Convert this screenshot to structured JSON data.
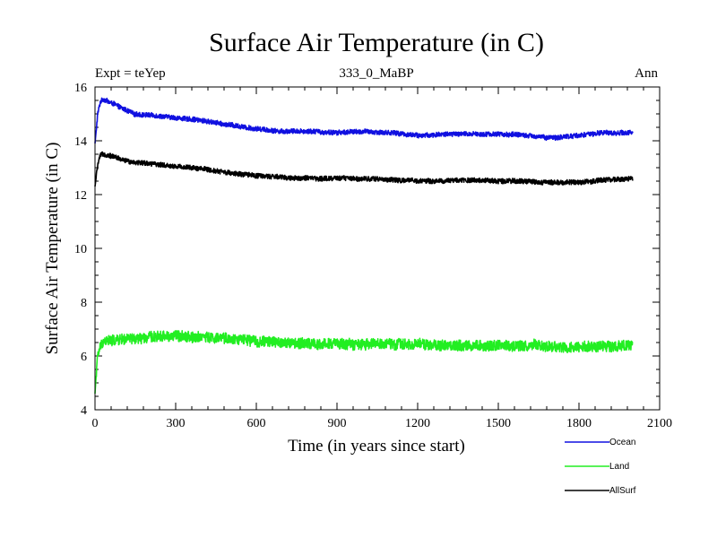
{
  "chart_data": {
    "type": "line",
    "title": "Surface Air Temperature (in C)",
    "subtitle": "333_0_MaBP",
    "expt_label": "Expt = teYep",
    "period_label": "Ann",
    "xlabel": "Time (in years since start)",
    "ylabel": "Surface Air Temperature (in C)",
    "xlim": [
      0,
      2100
    ],
    "ylim": [
      4,
      16
    ],
    "x_ticks": [
      0,
      300,
      600,
      900,
      1200,
      1500,
      1800,
      2100
    ],
    "x_tick_labels": [
      "0",
      "300",
      "600",
      "900",
      "1200",
      "1500",
      "1800",
      "2100"
    ],
    "y_ticks": [
      4,
      6,
      8,
      10,
      12,
      14,
      16
    ],
    "y_tick_labels": [
      "4",
      "6",
      "8",
      "10",
      "12",
      "14",
      "16"
    ],
    "grid": false,
    "legend_position": "bottom-right, below plot",
    "series": [
      {
        "name": "Ocean",
        "color": "#1010e0",
        "x": [
          0,
          10,
          20,
          30,
          50,
          75,
          100,
          150,
          200,
          300,
          400,
          500,
          600,
          700,
          800,
          900,
          1000,
          1100,
          1200,
          1300,
          1400,
          1500,
          1600,
          1700,
          1800,
          1900,
          2000
        ],
        "values": [
          13.9,
          15.0,
          15.45,
          15.55,
          15.45,
          15.35,
          15.2,
          15.0,
          14.95,
          14.85,
          14.75,
          14.6,
          14.45,
          14.35,
          14.35,
          14.3,
          14.35,
          14.3,
          14.2,
          14.25,
          14.25,
          14.25,
          14.2,
          14.1,
          14.2,
          14.3,
          14.3
        ],
        "noise": 0.09
      },
      {
        "name": "Land",
        "color": "#22ee22",
        "x": [
          0,
          5,
          10,
          20,
          30,
          50,
          100,
          200,
          300,
          400,
          500,
          600,
          700,
          800,
          900,
          1000,
          1100,
          1200,
          1300,
          1400,
          1500,
          1600,
          1700,
          1800,
          1900,
          2000
        ],
        "values": [
          4.6,
          5.4,
          6.0,
          6.35,
          6.5,
          6.55,
          6.6,
          6.7,
          6.75,
          6.7,
          6.65,
          6.55,
          6.5,
          6.45,
          6.45,
          6.45,
          6.45,
          6.45,
          6.4,
          6.4,
          6.4,
          6.4,
          6.35,
          6.35,
          6.35,
          6.4
        ],
        "noise": 0.2
      },
      {
        "name": "AllSurf",
        "color": "#000000",
        "x": [
          0,
          10,
          20,
          30,
          50,
          75,
          100,
          150,
          200,
          300,
          400,
          500,
          600,
          700,
          800,
          900,
          1000,
          1100,
          1200,
          1300,
          1400,
          1500,
          1600,
          1700,
          1800,
          1900,
          2000
        ],
        "values": [
          12.3,
          13.1,
          13.45,
          13.5,
          13.45,
          13.4,
          13.3,
          13.2,
          13.15,
          13.05,
          12.95,
          12.8,
          12.7,
          12.65,
          12.6,
          12.6,
          12.6,
          12.55,
          12.5,
          12.5,
          12.55,
          12.5,
          12.5,
          12.45,
          12.45,
          12.55,
          12.6
        ],
        "noise": 0.09
      }
    ]
  }
}
